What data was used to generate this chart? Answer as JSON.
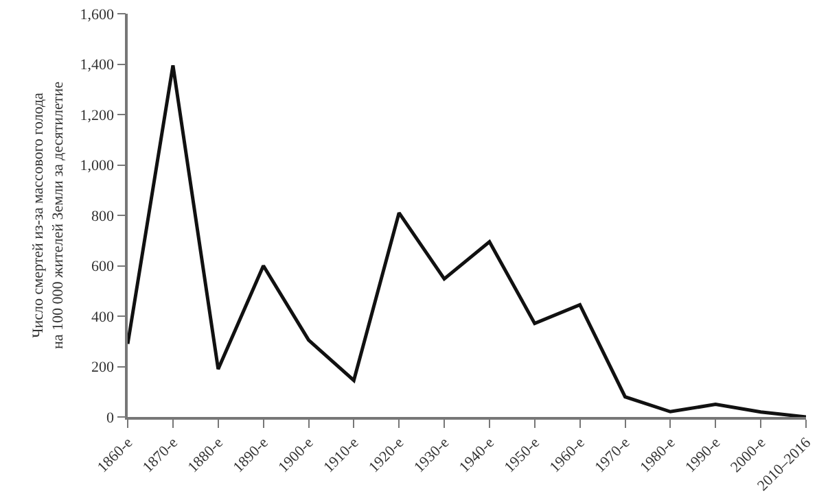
{
  "chart_data": {
    "type": "line",
    "ylabel": "Число смертей из-за массового голода\nна 100 000 жителей Земли за десятилетие",
    "categories": [
      "1860-е",
      "1870-е",
      "1880-е",
      "1890-е",
      "1900-е",
      "1910-е",
      "1920-е",
      "1930-е",
      "1940-е",
      "1950-е",
      "1960-е",
      "1970-е",
      "1980-е",
      "1990-е",
      "2000-е",
      "2010–2016"
    ],
    "series": [
      {
        "color": "#111111",
        "values": [
          290,
          1395,
          190,
          600,
          305,
          145,
          810,
          548,
          695,
          371,
          445,
          80,
          21,
          50,
          20,
          0
        ]
      }
    ],
    "ylim": [
      0,
      1600
    ],
    "yticks": [
      0,
      {
        "value": 200,
        "label": "200"
      },
      {
        "value": 400,
        "label": "400"
      },
      {
        "value": 600,
        "label": "600"
      },
      {
        "value": 800,
        "label": "800"
      },
      {
        "value": 1000,
        "label": "1,000"
      },
      {
        "value": 1200,
        "label": "1,200"
      },
      {
        "value": 1400,
        "label": "1,400"
      },
      {
        "value": 1600,
        "label": "1,600"
      }
    ],
    "grid": false,
    "marker": "none",
    "line_style": "solid"
  }
}
